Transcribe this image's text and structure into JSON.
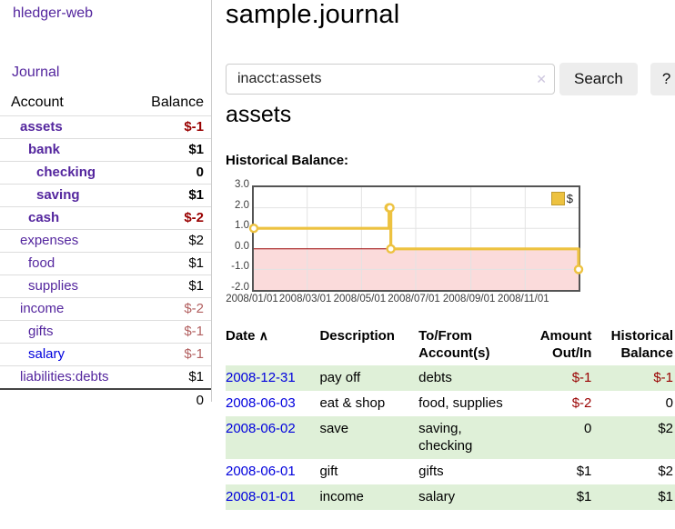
{
  "header": {
    "title": "sample.journal"
  },
  "sidebar": {
    "brand": "hledger-web",
    "journal_label": "Journal",
    "headers": {
      "account": "Account",
      "balance": "Balance"
    },
    "accounts": [
      {
        "name": "assets",
        "level": 1,
        "bold": true,
        "balance": "$-1",
        "neg": "strong"
      },
      {
        "name": "bank",
        "level": 2,
        "bold": true,
        "balance": "$1"
      },
      {
        "name": "checking",
        "level": 3,
        "bold": true,
        "balance": "0"
      },
      {
        "name": "saving",
        "level": 3,
        "bold": true,
        "balance": "$1"
      },
      {
        "name": "cash",
        "level": 2,
        "bold": true,
        "balance": "$-2",
        "neg": "strong"
      },
      {
        "name": "expenses",
        "level": 1,
        "bold": false,
        "balance": "$2"
      },
      {
        "name": "food",
        "level": 2,
        "bold": false,
        "balance": "$1"
      },
      {
        "name": "supplies",
        "level": 2,
        "bold": false,
        "balance": "$1"
      },
      {
        "name": "income",
        "level": 1,
        "bold": false,
        "balance": "$-2",
        "neg": "faded"
      },
      {
        "name": "gifts",
        "level": 2,
        "bold": false,
        "balance": "$-1",
        "neg": "faded"
      },
      {
        "name": "salary",
        "level": 2,
        "bold": false,
        "balance": "$-1",
        "neg": "faded",
        "blue": true
      },
      {
        "name": "liabilities:debts",
        "level": 1,
        "bold": false,
        "balance": "$1"
      }
    ],
    "total": "0"
  },
  "search": {
    "value": "inacct:assets",
    "clear_icon": "✕",
    "button_label": "Search",
    "help_label": "?"
  },
  "account_page": {
    "heading": "assets",
    "chart_label": "Historical Balance:"
  },
  "chart_data": {
    "type": "line",
    "step": true,
    "title": "Historical Balance:",
    "x_range": [
      "2008-01-01",
      "2008-12-31"
    ],
    "ylim": [
      -2,
      3
    ],
    "yticks": [
      3,
      2,
      1,
      0,
      -1,
      -2
    ],
    "ytick_labels": [
      "3.0",
      "2.0",
      "1.0",
      "0.0",
      "-1.0",
      "-2.0"
    ],
    "xticks": [
      {
        "label": "2008/01/01",
        "date": "2008-01-01"
      },
      {
        "label": "2008/03/01",
        "date": "2008-03-01"
      },
      {
        "label": "2008/05/01",
        "date": "2008-05-01"
      },
      {
        "label": "2008/07/01",
        "date": "2008-07-01"
      },
      {
        "label": "2008/09/01",
        "date": "2008-09-01"
      },
      {
        "label": "2008/11/01",
        "date": "2008-11-01"
      }
    ],
    "series": [
      {
        "name": "$",
        "color": "#edc240",
        "points": [
          {
            "date": "2008-01-01",
            "value": 1
          },
          {
            "date": "2008-06-01",
            "value": 2
          },
          {
            "date": "2008-06-02",
            "value": 2
          },
          {
            "date": "2008-06-03",
            "value": 0
          },
          {
            "date": "2008-12-31",
            "value": -1
          }
        ]
      }
    ],
    "legend": {
      "label": "$",
      "swatch_color": "#edc240",
      "position": "top-right"
    },
    "grid": true,
    "negative_region_color": "#fbdbdb",
    "zero_line_color": "#9a0000"
  },
  "transactions": {
    "headers": {
      "date": "Date",
      "sort_icon": "∧",
      "description": "Description",
      "tofrom_l1": "To/From",
      "tofrom_l2": "Account(s)",
      "amount_l1": "Amount",
      "amount_l2": "Out/In",
      "balance_l1": "Historical",
      "balance_l2": "Balance"
    },
    "rows": [
      {
        "date": "2008-12-31",
        "description": "pay off",
        "accounts": "debts",
        "amount": "$-1",
        "balance": "$-1",
        "amount_neg": true,
        "balance_neg": true,
        "striped": true
      },
      {
        "date": "2008-06-03",
        "description": "eat & shop",
        "accounts": "food, supplies",
        "amount": "$-2",
        "balance": "0",
        "amount_neg": true,
        "balance_neg": false,
        "striped": false
      },
      {
        "date": "2008-06-02",
        "description": "save",
        "accounts": "saving, checking",
        "amount": "0",
        "balance": "$2",
        "amount_neg": false,
        "balance_neg": false,
        "striped": true
      },
      {
        "date": "2008-06-01",
        "description": "gift",
        "accounts": "gifts",
        "amount": "$1",
        "balance": "$2",
        "amount_neg": false,
        "balance_neg": false,
        "striped": false
      },
      {
        "date": "2008-01-01",
        "description": "income",
        "accounts": "salary",
        "amount": "$1",
        "balance": "$1",
        "amount_neg": false,
        "balance_neg": false,
        "striped": true
      }
    ]
  },
  "colors": {
    "accent_purple": "#54269e",
    "link_blue": "#0000dd",
    "negative_strong": "#990000",
    "negative_faded": "#b25f5f",
    "row_stripe_green": "#dff0d8",
    "chart_line_gold": "#edc240",
    "chart_negative_region": "#fbdbdb",
    "chart_zero_line": "#9a0000"
  }
}
